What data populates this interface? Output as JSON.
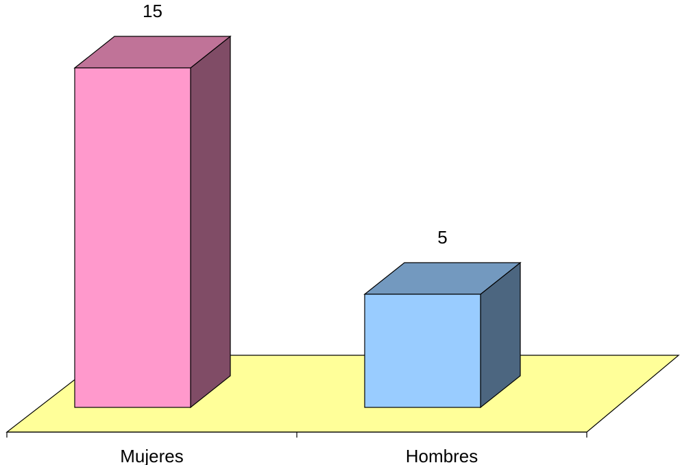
{
  "chart_data": {
    "type": "bar",
    "style": "3d-column",
    "categories": [
      "Mujeres",
      "Hombres"
    ],
    "values": [
      15,
      5
    ],
    "data_labels": [
      "15",
      "5"
    ],
    "title": "",
    "xlabel": "",
    "ylabel": "",
    "ylim": [
      0,
      15
    ],
    "grid": false,
    "legend": "none",
    "colors": {
      "floor": "#ffff99",
      "bars": [
        {
          "front": "#ff99cc",
          "top": "#c07398",
          "side": "#804c66"
        },
        {
          "front": "#99ccff",
          "top": "#7399bf",
          "side": "#4c6680"
        }
      ]
    }
  }
}
